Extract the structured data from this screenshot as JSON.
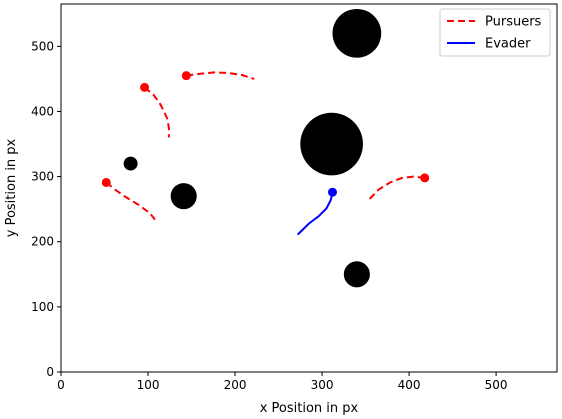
{
  "chart_data": {
    "type": "line",
    "xlabel": "x Position in px",
    "ylabel": "y Position in px",
    "xlim": [
      0,
      570
    ],
    "ylim": [
      0,
      565
    ],
    "xticks": [
      0,
      100,
      200,
      300,
      400,
      500
    ],
    "yticks": [
      0,
      100,
      200,
      300,
      400,
      500
    ],
    "grid": false,
    "legend": {
      "placement": "top-right",
      "entries": [
        {
          "label": "Pursuers",
          "color": "#ff0000",
          "style": "dashed"
        },
        {
          "label": "Evader",
          "color": "#0000ff",
          "style": "solid"
        }
      ]
    },
    "obstacles": [
      {
        "x": 340,
        "y": 520,
        "r": 28,
        "color": "#000000"
      },
      {
        "x": 311,
        "y": 350,
        "r": 36,
        "color": "#000000"
      },
      {
        "x": 141,
        "y": 270,
        "r": 15,
        "color": "#000000"
      },
      {
        "x": 80,
        "y": 320,
        "r": 8,
        "color": "#000000"
      },
      {
        "x": 340,
        "y": 150,
        "r": 15,
        "color": "#000000"
      }
    ],
    "series": [
      {
        "name": "Pursuers",
        "color": "#ff0000",
        "style": "dashed",
        "paths": [
          {
            "start": {
              "x": 96,
              "y": 437
            },
            "points": [
              [
                96,
                437
              ],
              [
                106,
                426
              ],
              [
                113,
                414
              ],
              [
                118,
                401
              ],
              [
                122,
                389
              ],
              [
                124,
                375
              ],
              [
                124,
                360
              ]
            ]
          },
          {
            "start": {
              "x": 144,
              "y": 455
            },
            "points": [
              [
                144,
                455
              ],
              [
                160,
                458
              ],
              [
                176,
                460
              ],
              [
                192,
                459
              ],
              [
                208,
                456
              ],
              [
                222,
                450
              ]
            ]
          },
          {
            "start": {
              "x": 52,
              "y": 291
            },
            "points": [
              [
                52,
                291
              ],
              [
                62,
                280
              ],
              [
                75,
                268
              ],
              [
                90,
                256
              ],
              [
                102,
                244
              ],
              [
                108,
                234
              ]
            ]
          },
          {
            "start": {
              "x": 418,
              "y": 298
            },
            "points": [
              [
                418,
                298
              ],
              [
                405,
                300
              ],
              [
                392,
                298
              ],
              [
                378,
                291
              ],
              [
                365,
                280
              ],
              [
                352,
                262
              ]
            ]
          }
        ]
      },
      {
        "name": "Evader",
        "color": "#0000ff",
        "style": "solid",
        "paths": [
          {
            "start": {
              "x": 312,
              "y": 276
            },
            "points": [
              [
                312,
                276
              ],
              [
                310,
                264
              ],
              [
                305,
                251
              ],
              [
                296,
                239
              ],
              [
                285,
                228
              ],
              [
                272,
                211
              ]
            ]
          }
        ]
      }
    ]
  }
}
